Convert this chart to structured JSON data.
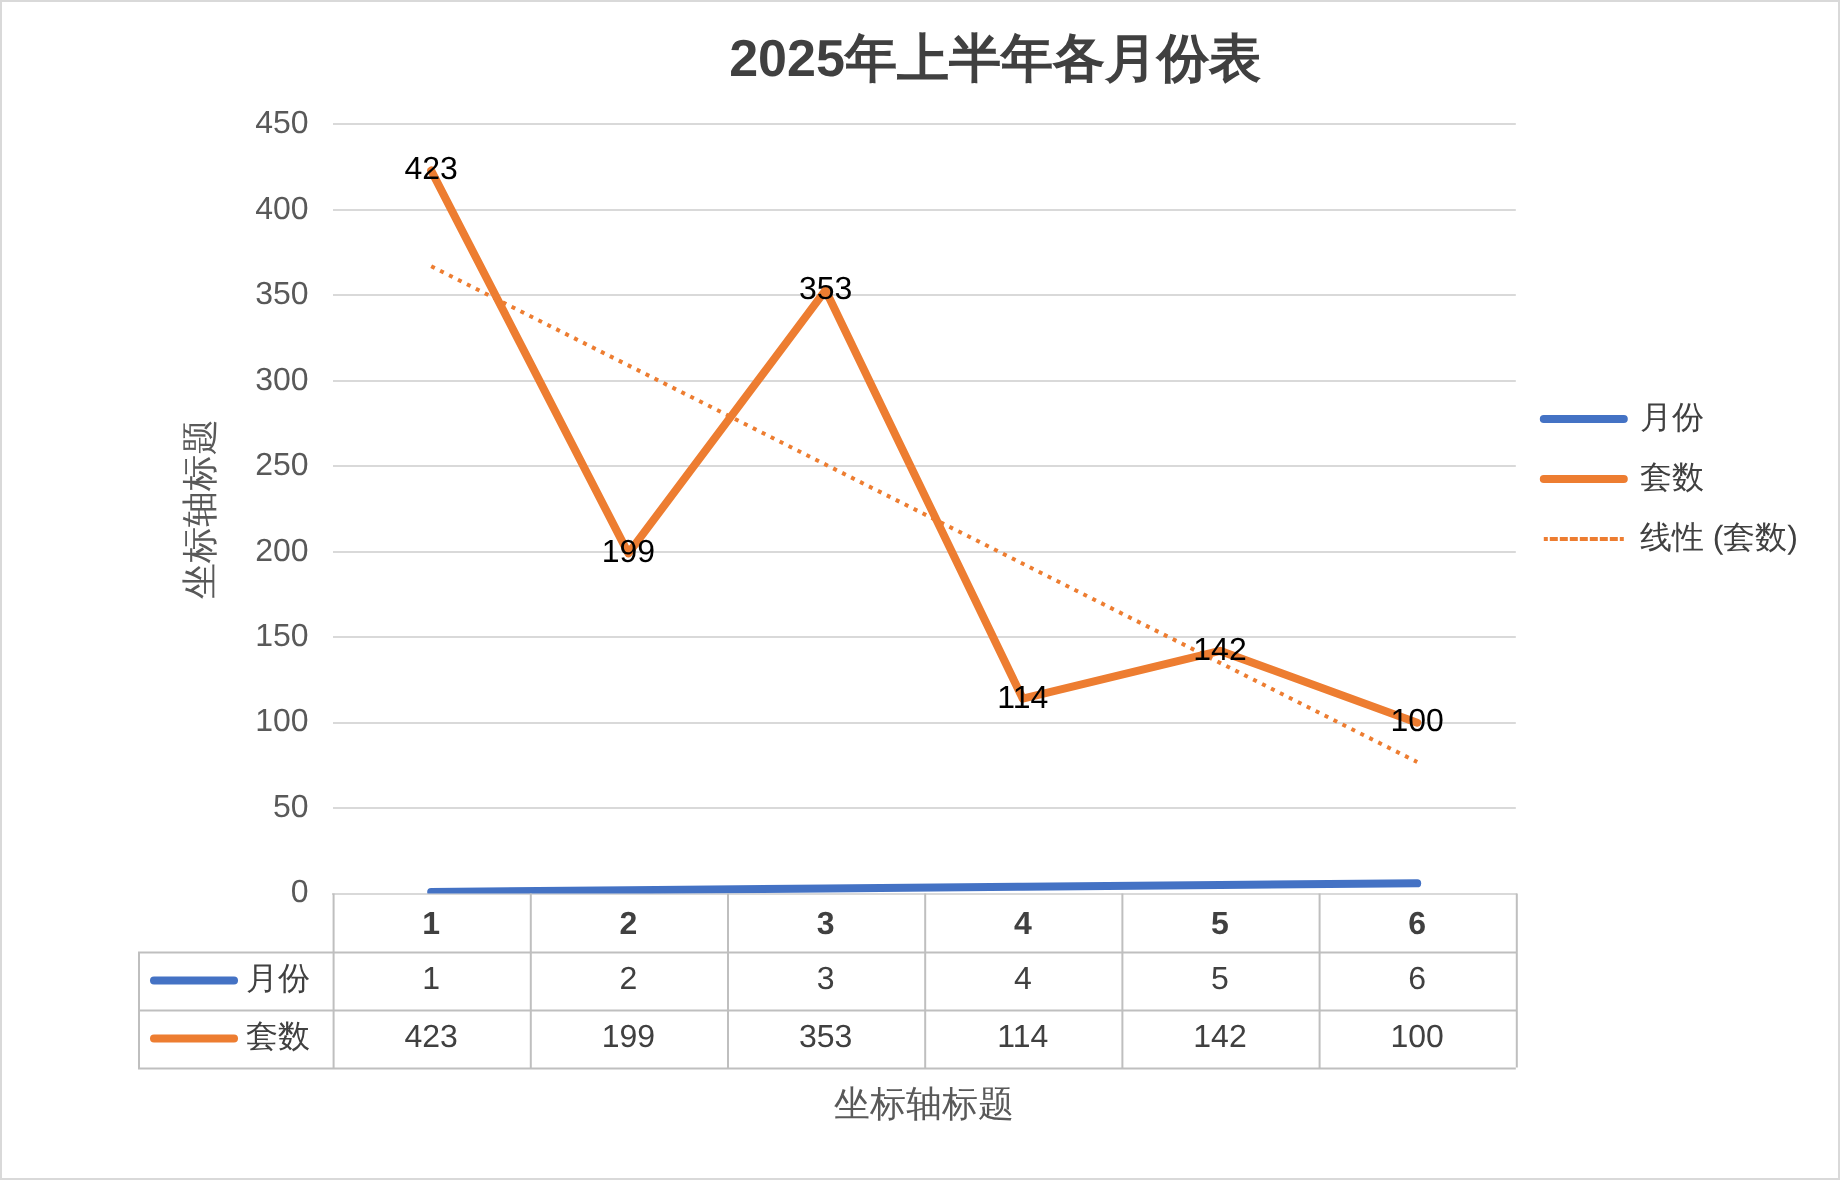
{
  "chart_data": {
    "type": "line",
    "title": "2025年上半年各月份表",
    "xlabel": "坐标轴标题",
    "ylabel": "坐标轴标题",
    "categories": [
      "1",
      "2",
      "3",
      "4",
      "5",
      "6"
    ],
    "series": [
      {
        "name": "月份",
        "color": "#4472c4",
        "values": [
          1,
          2,
          3,
          4,
          5,
          6
        ]
      },
      {
        "name": "套数",
        "color": "#ed7d31",
        "values": [
          423,
          199,
          353,
          114,
          142,
          100
        ]
      },
      {
        "name": "线性 (套数)",
        "color": "#ed7d31",
        "type": "line",
        "line_style": "dotted",
        "x": [
          "1",
          "6"
        ],
        "values": [
          367,
          77
        ],
        "value_labels": [
          null,
          null
        ]
      }
    ],
    "ylim": [
      0,
      450
    ],
    "yticks": [
      0,
      50,
      100,
      150,
      200,
      250,
      300,
      350,
      400,
      450
    ],
    "annotations": [
      {
        "text": "423",
        "x": "1",
        "y": 423
      },
      {
        "text": "199",
        "x": "2",
        "y": 199
      },
      {
        "text": "353",
        "x": "3",
        "y": 353
      },
      {
        "text": "114",
        "x": "4",
        "y": 114
      },
      {
        "text": "142",
        "x": "5",
        "y": 142
      },
      {
        "text": "100",
        "x": "6",
        "y": 100
      }
    ],
    "grid": "y",
    "legend": "right",
    "marker": "none",
    "line_style": "solid",
    "data_labels": true
  }
}
